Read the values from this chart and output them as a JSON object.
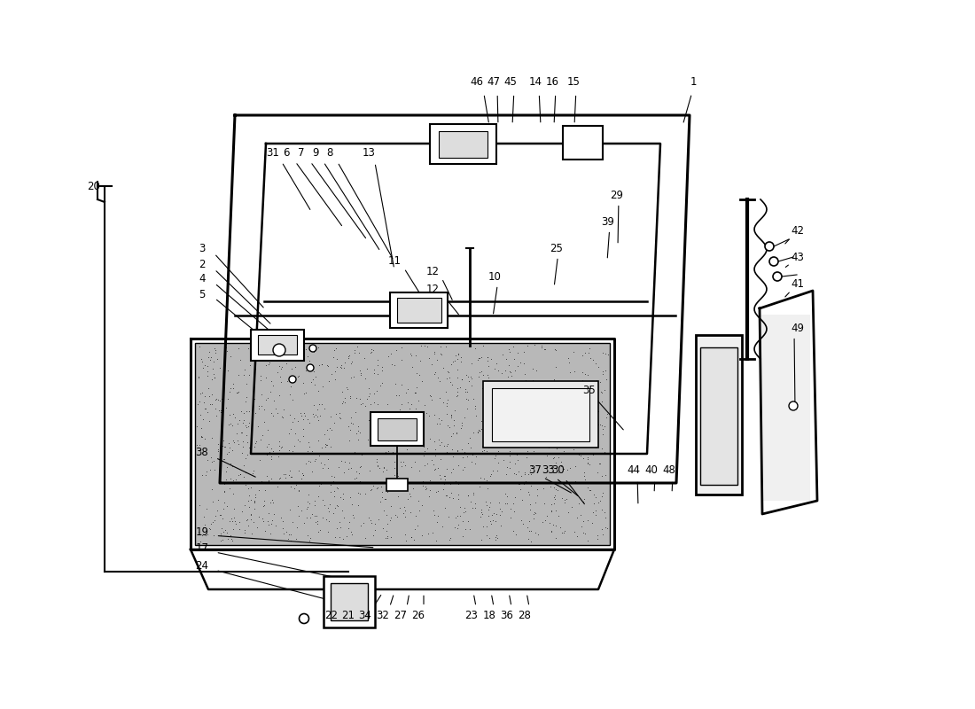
{
  "bg_color": "#ffffff",
  "line_color": "#000000",
  "figsize": [
    11.0,
    8.0
  ],
  "dpi": 100,
  "labels": [
    [
      "1",
      782,
      93
    ],
    [
      "46",
      538,
      93
    ],
    [
      "47",
      557,
      93
    ],
    [
      "45",
      576,
      93
    ],
    [
      "14",
      604,
      93
    ],
    [
      "16",
      623,
      93
    ],
    [
      "15",
      647,
      93
    ],
    [
      "20",
      106,
      210
    ],
    [
      "31",
      308,
      172
    ],
    [
      "6",
      323,
      172
    ],
    [
      "7",
      340,
      172
    ],
    [
      "9",
      356,
      172
    ],
    [
      "8",
      372,
      172
    ],
    [
      "13",
      416,
      172
    ],
    [
      "3",
      228,
      280
    ],
    [
      "2",
      228,
      298
    ],
    [
      "4",
      228,
      315
    ],
    [
      "5",
      228,
      332
    ],
    [
      "11",
      445,
      294
    ],
    [
      "12",
      488,
      306
    ],
    [
      "12",
      488,
      326
    ],
    [
      "10",
      558,
      312
    ],
    [
      "29",
      696,
      220
    ],
    [
      "39",
      686,
      250
    ],
    [
      "25",
      628,
      280
    ],
    [
      "42",
      900,
      260
    ],
    [
      "43",
      900,
      290
    ],
    [
      "41",
      900,
      320
    ],
    [
      "49",
      900,
      370
    ],
    [
      "35",
      665,
      440
    ],
    [
      "38",
      228,
      510
    ],
    [
      "19",
      228,
      600
    ],
    [
      "17",
      228,
      618
    ],
    [
      "24",
      228,
      638
    ],
    [
      "22",
      374,
      694
    ],
    [
      "21",
      393,
      694
    ],
    [
      "34",
      412,
      694
    ],
    [
      "32",
      432,
      694
    ],
    [
      "27",
      452,
      694
    ],
    [
      "26",
      472,
      694
    ],
    [
      "23",
      532,
      694
    ],
    [
      "18",
      552,
      694
    ],
    [
      "36",
      572,
      694
    ],
    [
      "28",
      592,
      694
    ],
    [
      "37",
      604,
      530
    ],
    [
      "33",
      619,
      530
    ],
    [
      "30",
      630,
      530
    ],
    [
      "44",
      715,
      530
    ],
    [
      "40",
      735,
      530
    ],
    [
      "48",
      755,
      530
    ]
  ],
  "leader_lines": [
    [
      782,
      100,
      770,
      142
    ],
    [
      545,
      100,
      552,
      142
    ],
    [
      561,
      100,
      562,
      142
    ],
    [
      580,
      100,
      578,
      142
    ],
    [
      608,
      100,
      610,
      142
    ],
    [
      627,
      100,
      625,
      142
    ],
    [
      650,
      100,
      648,
      142
    ],
    [
      114,
      210,
      118,
      213
    ],
    [
      315,
      178,
      352,
      240
    ],
    [
      330,
      178,
      388,
      258
    ],
    [
      347,
      178,
      415,
      272
    ],
    [
      362,
      178,
      430,
      285
    ],
    [
      378,
      178,
      445,
      295
    ],
    [
      422,
      178,
      445,
      305
    ],
    [
      238,
      282,
      300,
      350
    ],
    [
      238,
      300,
      308,
      368
    ],
    [
      238,
      316,
      318,
      385
    ],
    [
      238,
      333,
      326,
      405
    ],
    [
      453,
      298,
      478,
      338
    ],
    [
      496,
      309,
      512,
      342
    ],
    [
      496,
      328,
      520,
      358
    ],
    [
      562,
      316,
      556,
      358
    ],
    [
      698,
      224,
      697,
      278
    ],
    [
      688,
      254,
      685,
      295
    ],
    [
      630,
      284,
      625,
      325
    ],
    [
      896,
      264,
      883,
      278
    ],
    [
      896,
      294,
      883,
      304
    ],
    [
      896,
      324,
      883,
      338
    ],
    [
      896,
      374,
      897,
      462
    ],
    [
      667,
      444,
      706,
      488
    ],
    [
      238,
      514,
      292,
      540
    ],
    [
      238,
      604,
      425,
      618
    ],
    [
      238,
      622,
      395,
      655
    ],
    [
      238,
      642,
      375,
      678
    ],
    [
      380,
      690,
      412,
      668
    ],
    [
      399,
      690,
      422,
      668
    ],
    [
      418,
      690,
      432,
      668
    ],
    [
      438,
      690,
      445,
      668
    ],
    [
      458,
      690,
      462,
      668
    ],
    [
      478,
      690,
      478,
      668
    ],
    [
      538,
      690,
      534,
      668
    ],
    [
      558,
      690,
      554,
      668
    ],
    [
      578,
      690,
      574,
      668
    ],
    [
      598,
      690,
      594,
      668
    ],
    [
      608,
      536,
      648,
      558
    ],
    [
      623,
      536,
      655,
      562
    ],
    [
      634,
      536,
      662,
      572
    ],
    [
      719,
      536,
      720,
      572
    ],
    [
      739,
      536,
      738,
      558
    ],
    [
      759,
      536,
      758,
      558
    ]
  ]
}
